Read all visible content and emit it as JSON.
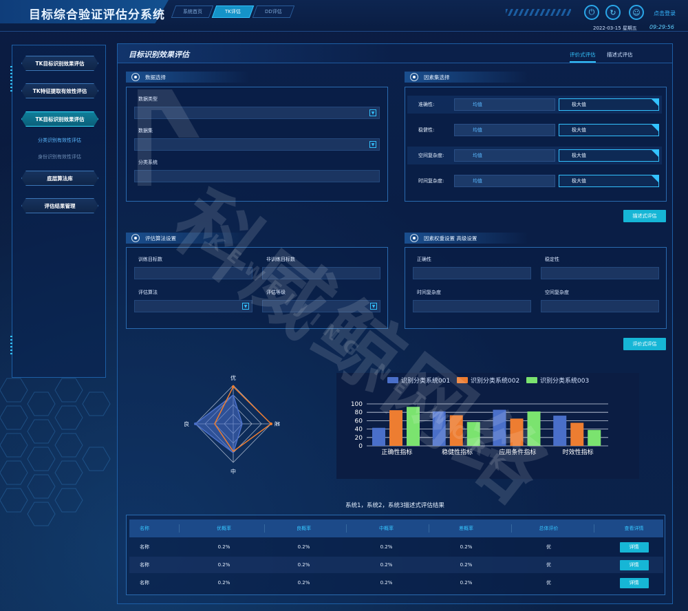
{
  "app": {
    "title": "目标综合验证评估分系统",
    "nav_tabs": [
      "系统首页",
      "TK评估",
      "DD评估"
    ],
    "active_nav": 1,
    "login_label": "点击登录",
    "date": "2022-03-15  星期五",
    "time": "09:29:56",
    "icons": [
      "power-icon",
      "refresh-icon",
      "user-icon"
    ]
  },
  "sidebar": {
    "items": [
      {
        "label": "TK目标识别效果评估"
      },
      {
        "label": "TK特征提取有效性评估"
      },
      {
        "label": "TK目标识别效果评估"
      },
      {
        "label": "分类识别有效性评估"
      },
      {
        "label": "身份识别有效性评估"
      },
      {
        "label": "底层算法库"
      },
      {
        "label": "评估结果管理"
      }
    ]
  },
  "main": {
    "title": "目标识别效果评估",
    "tabs": [
      "评价式评估",
      "描述式评估"
    ],
    "data_select": {
      "title": "数据选择",
      "type_label": "数据类型",
      "set_label": "数据集",
      "system_label": "分类系统"
    },
    "factor_select": {
      "title": "因素集选择",
      "rows": [
        {
          "name": "准确性:",
          "mean": "均值",
          "sel": "极大值"
        },
        {
          "name": "稳健性:",
          "mean": "均值",
          "sel": "极大值"
        },
        {
          "name": "空间复杂度:",
          "mean": "均值",
          "sel": "极大值"
        },
        {
          "name": "时间复杂度:",
          "mean": "均值",
          "sel": "极大值"
        }
      ],
      "button": "描述式评估"
    },
    "algo": {
      "title": "评估算法设置",
      "train_label": "训练目标数",
      "nontrain_label": "非训练目标数",
      "algo_label": "评估算法",
      "level_label": "评估等级"
    },
    "weights": {
      "title": "因素权重设置 高级设置",
      "labels": [
        "正确性",
        "稳定性",
        "时间复杂度",
        "空间复杂度"
      ],
      "button": "评价式评估"
    },
    "result_title": "系统1，系统2，系统3描述式评估结果"
  },
  "radar": {
    "axes": [
      "优",
      "差",
      "中",
      "良"
    ]
  },
  "chart_data": {
    "type": "bar",
    "categories": [
      "正确性指标",
      "稳健性指标",
      "应用条件指标",
      "时效性指标"
    ],
    "series": [
      {
        "name": "识别分类系统001",
        "color": "#4a6fc9",
        "values": [
          43,
          82,
          86,
          72
        ]
      },
      {
        "name": "识别分类系统002",
        "color": "#ed7d31",
        "values": [
          85,
          73,
          65,
          55
        ]
      },
      {
        "name": "识别分类系统003",
        "color": "#7be36f",
        "values": [
          93,
          57,
          82,
          38
        ]
      }
    ],
    "ylim": [
      0,
      100
    ],
    "yticks": [
      0,
      20,
      40,
      60,
      80,
      100
    ]
  },
  "table": {
    "headers": [
      "名称",
      "优概率",
      "良概率",
      "中概率",
      "差概率",
      "总体评价",
      "查看详情"
    ],
    "rows": [
      [
        "名称",
        "0.2%",
        "0.2%",
        "0.2%",
        "0.2%",
        "优",
        "详情"
      ],
      [
        "名称",
        "0.2%",
        "0.2%",
        "0.2%",
        "0.2%",
        "优",
        "详情"
      ],
      [
        "名称",
        "0.2%",
        "0.2%",
        "0.2%",
        "0.2%",
        "优",
        "详情"
      ]
    ]
  },
  "watermark": {
    "big": "科威鲸网络",
    "small": "KEWEIJING NETWORK"
  }
}
